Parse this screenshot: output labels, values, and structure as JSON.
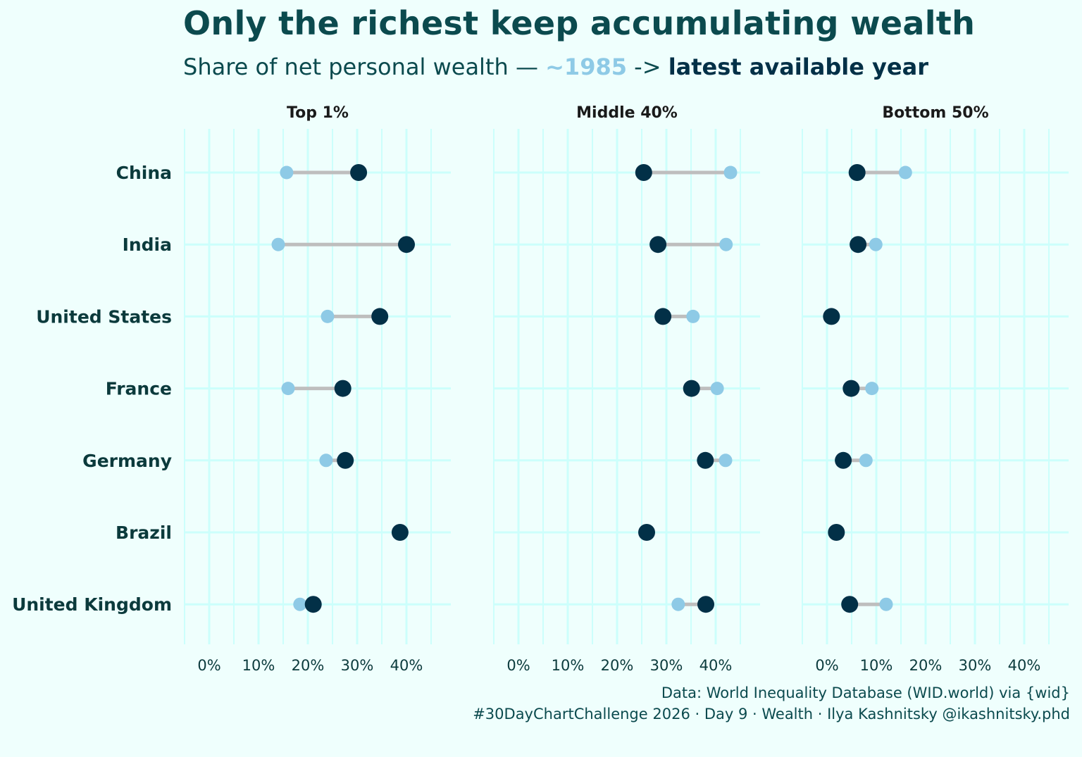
{
  "title": "Only the richest keep accumulating wealth",
  "subtitle": {
    "prefix": "Share of net personal wealth — ",
    "early": "~1985",
    "arrow": " -> ",
    "late": "latest available year"
  },
  "caption": {
    "line1": "Data: World Inequality Database (WID.world) via {wid}",
    "line2": "#30DayChartChallenge 2026 · Day 9 · Wealth · Ilya Kashnitsky @ikashnitsky.phd"
  },
  "colors": {
    "early": "#8ecae6",
    "late": "#023047",
    "segment": "#bebebe",
    "grid": "#ccfffc",
    "background": "#effffd"
  },
  "chart_data": {
    "type": "dumbbell",
    "categories": [
      "China",
      "India",
      "United States",
      "France",
      "Germany",
      "Brazil",
      "United Kingdom"
    ],
    "xlim": [
      -5,
      49
    ],
    "x_ticks": [
      "0%",
      "10%",
      "20%",
      "30%",
      "40%"
    ],
    "grid": true,
    "panels": [
      {
        "name": "Top 1%",
        "early": [
          15.7,
          14.0,
          24.0,
          16.0,
          23.7,
          null,
          18.4
        ],
        "late": [
          30.3,
          40.0,
          34.6,
          27.1,
          27.6,
          38.7,
          21.1
        ]
      },
      {
        "name": "Middle 40%",
        "early": [
          43.0,
          42.1,
          35.4,
          40.3,
          42.0,
          null,
          32.4
        ],
        "late": [
          25.4,
          28.3,
          29.3,
          35.1,
          37.9,
          26.0,
          38.0
        ]
      },
      {
        "name": "Bottom 50%",
        "early": [
          15.9,
          9.9,
          1.3,
          9.1,
          7.9,
          null,
          12.0
        ],
        "late": [
          6.1,
          6.3,
          0.9,
          4.9,
          3.3,
          1.9,
          4.6
        ]
      }
    ]
  }
}
